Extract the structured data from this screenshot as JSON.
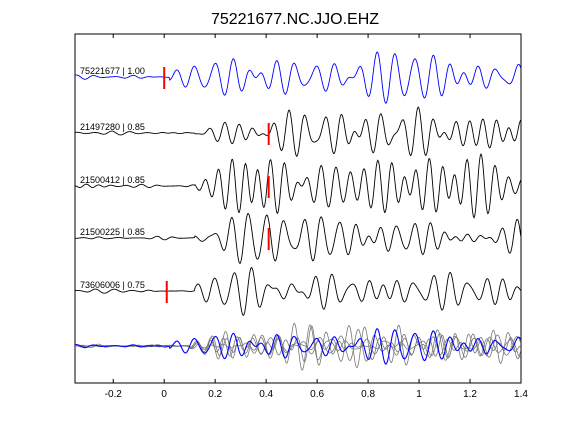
{
  "chart_data": {
    "type": "line",
    "title": "75221677.NC.JJO.EHZ",
    "xlabel": "",
    "ylabel": "",
    "xlim": [
      -0.35,
      1.4
    ],
    "x_ticks": [
      -0.2,
      0,
      0.2,
      0.4,
      0.6,
      0.8,
      1,
      1.2,
      1.4
    ],
    "x_tick_labels": [
      "-0.2",
      "0",
      "0.2",
      "0.4",
      "0.6",
      "0.8",
      "1",
      "1.2",
      "1.4"
    ],
    "colors": {
      "reference": "#0000ff",
      "match": "#000000",
      "overlay_gray": "#777777",
      "pick_marker": "#ff0000"
    },
    "traces": [
      {
        "label": "75221677 | 1.00",
        "event_id": "75221677",
        "correlation": 1.0,
        "pick_time": 0.0,
        "color": "#0000ff"
      },
      {
        "label": "21497280 | 0.85",
        "event_id": "21497280",
        "correlation": 0.85,
        "pick_time": 0.41,
        "color": "#000000"
      },
      {
        "label": "21500412 | 0.85",
        "event_id": "21500412",
        "correlation": 0.85,
        "pick_time": 0.41,
        "color": "#000000"
      },
      {
        "label": "21500225 | 0.85",
        "event_id": "21500225",
        "correlation": 0.85,
        "pick_time": 0.41,
        "color": "#000000"
      },
      {
        "label": "73606006 | 0.75",
        "event_id": "73606006",
        "correlation": 0.75,
        "pick_time": 0.01,
        "color": "#000000"
      }
    ],
    "overlay": {
      "description_visible": false
    }
  }
}
